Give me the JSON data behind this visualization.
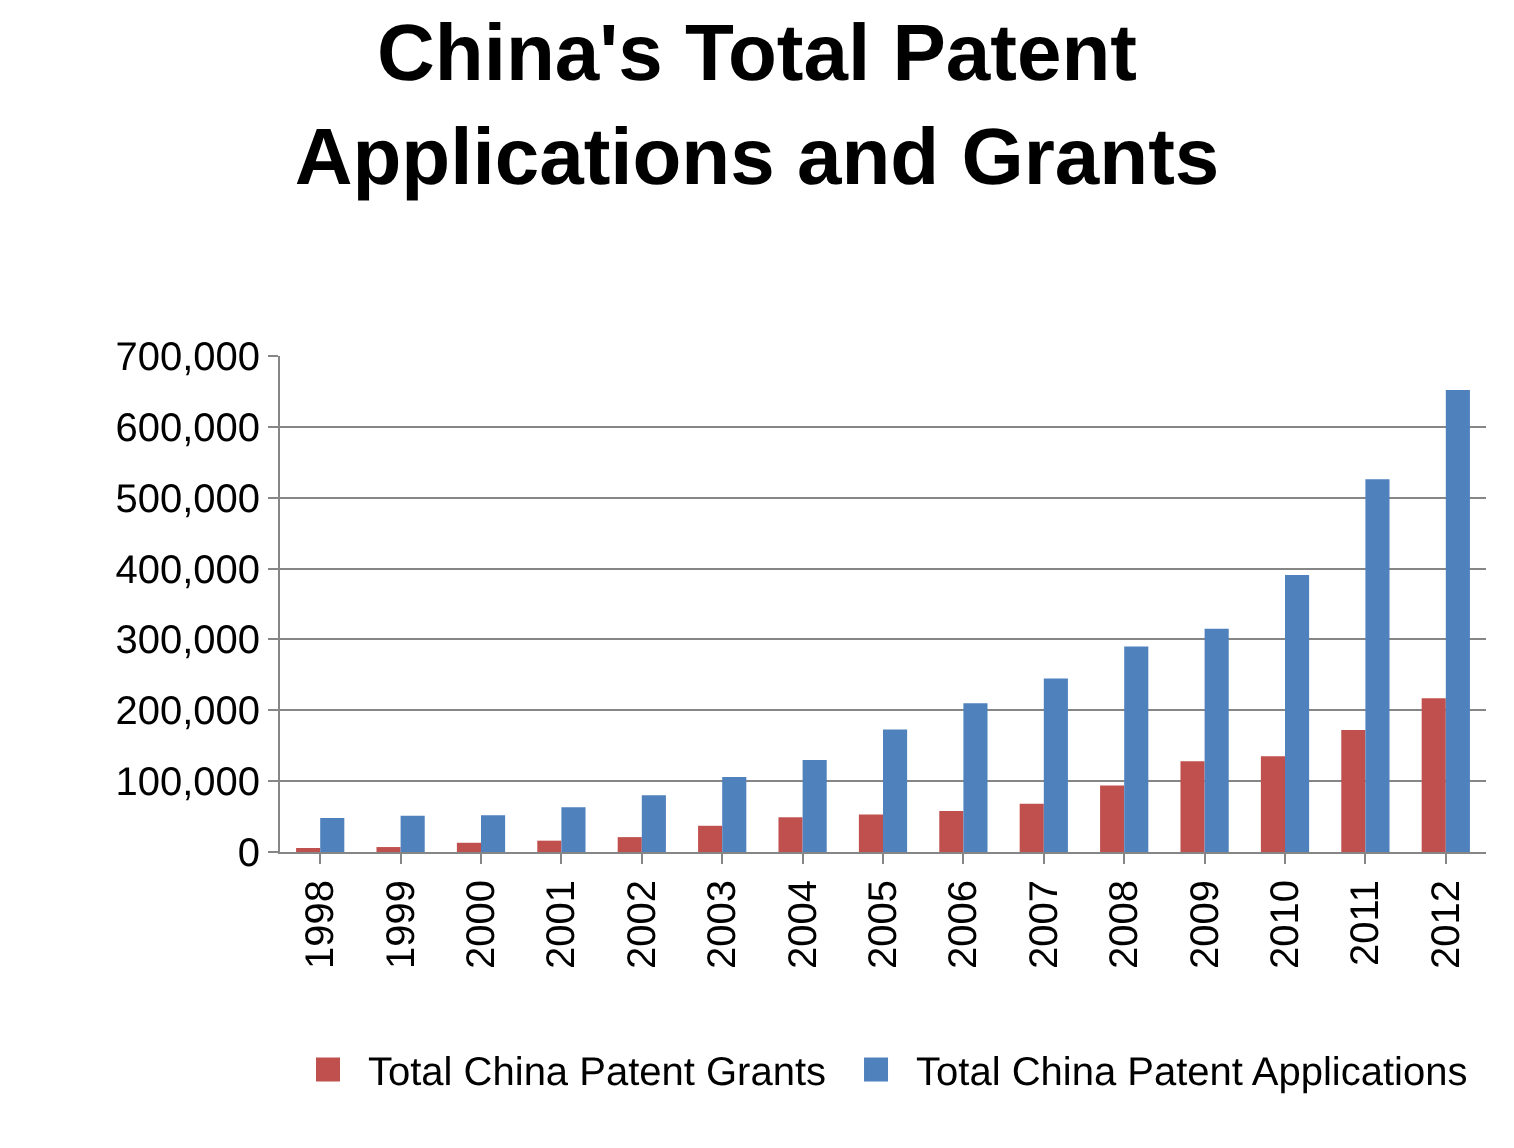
{
  "chart_data": {
    "type": "bar",
    "title": "China's Total Patent Applications and Grants",
    "categories": [
      "1998",
      "1999",
      "2000",
      "2001",
      "2002",
      "2003",
      "2004",
      "2005",
      "2006",
      "2007",
      "2008",
      "2009",
      "2010",
      "2011",
      "2012"
    ],
    "series": [
      {
        "name": "Total China Patent Grants",
        "color": "#c0504d",
        "values": [
          5000,
          7000,
          13000,
          16000,
          21000,
          37000,
          49000,
          53000,
          58000,
          68000,
          94000,
          128000,
          135000,
          172000,
          217000
        ]
      },
      {
        "name": "Total China Patent Applications",
        "color": "#4f81bd",
        "values": [
          48000,
          51000,
          52000,
          63000,
          80000,
          106000,
          130000,
          173000,
          210000,
          245000,
          290000,
          315000,
          391000,
          526000,
          652000
        ]
      }
    ],
    "ylim": [
      0,
      700000
    ],
    "yticks": [
      {
        "value": 0,
        "label": "0"
      },
      {
        "value": 100000,
        "label": "100,000"
      },
      {
        "value": 200000,
        "label": "200,000"
      },
      {
        "value": 300000,
        "label": "300,000"
      },
      {
        "value": 400000,
        "label": "400,000"
      },
      {
        "value": 500000,
        "label": "500,000"
      },
      {
        "value": 600000,
        "label": "600,000"
      },
      {
        "value": 700000,
        "label": "700,000"
      }
    ],
    "grid": "y",
    "legend": "bottom"
  }
}
